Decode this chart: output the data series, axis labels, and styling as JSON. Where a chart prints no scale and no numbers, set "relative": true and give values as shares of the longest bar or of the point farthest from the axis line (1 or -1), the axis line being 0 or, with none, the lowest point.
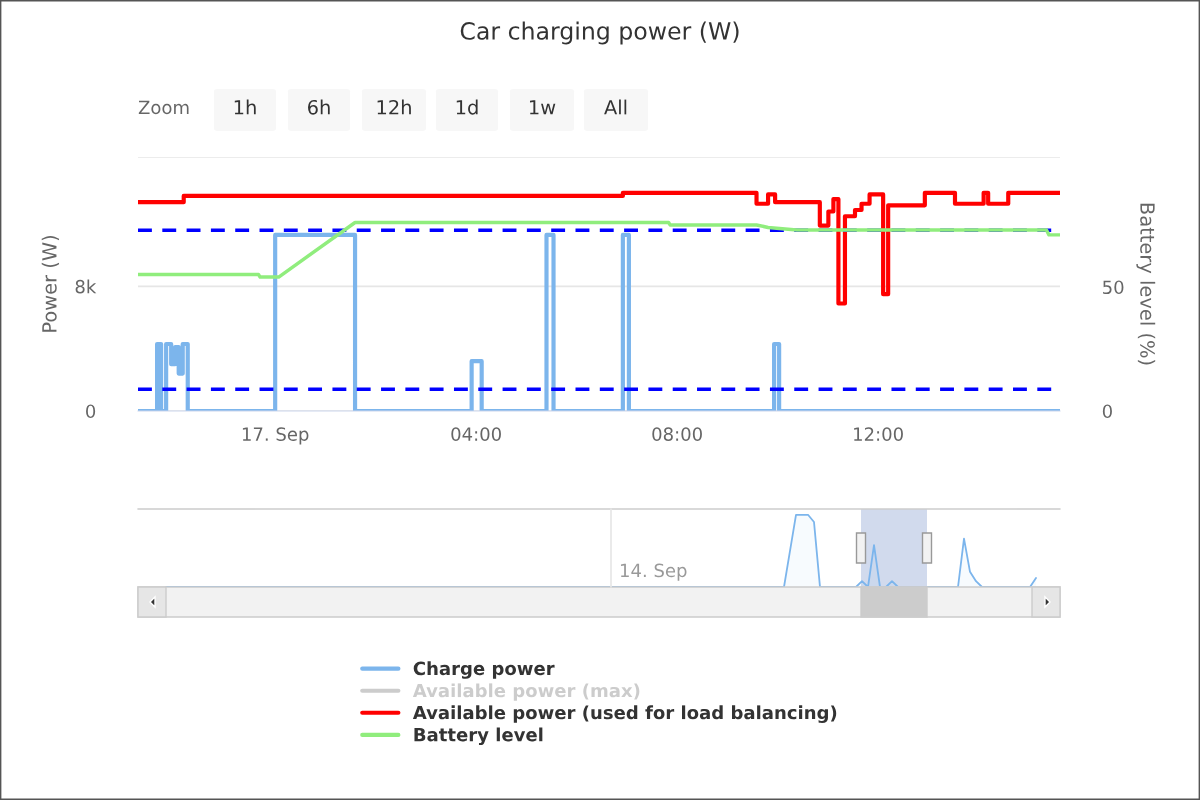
{
  "chart_data": [
    {
      "type": "line",
      "title": "Car charging power (W)",
      "ylabel": "Power (W)",
      "y2label": "Battery level (%)",
      "annotations": [
        "Zoom",
        "1h",
        "6h",
        "12h",
        "1d",
        "1w",
        "All"
      ],
      "xlim": [
        -2.73,
        15.62
      ],
      "xticks": [
        {
          "value": 0,
          "label": "17. Sep"
        },
        {
          "value": 4,
          "label": "04:00"
        },
        {
          "value": 8,
          "label": "08:00"
        },
        {
          "value": 12,
          "label": "12:00"
        }
      ],
      "ylim": [
        0,
        16300
      ],
      "yticks": [
        0,
        {
          "value": 8000,
          "label": "8k"
        },
        {
          "value": 16300,
          "label": null
        }
      ],
      "y2lim": [
        0,
        102.4
      ],
      "y2ticks": [
        0,
        50
      ],
      "grid": "y",
      "legend": "bottom",
      "ref_lines": [
        {
          "axis": "y",
          "value": 11600,
          "color": "#0000ff",
          "line_style": "dashed"
        },
        {
          "axis": "y",
          "value": 1400,
          "color": "#0000ff",
          "line_style": "dashed"
        }
      ],
      "series": [
        {
          "name": "Charge power",
          "type": "step",
          "color": "#7cb5ec",
          "x": [
            -2.73,
            -2.35,
            -2.27,
            -2.17,
            -2.07,
            -1.99,
            -1.92,
            -1.84,
            -1.74,
            0.0,
            1.59,
            3.91,
            4.11,
            5.4,
            5.54,
            6.92,
            7.04,
            9.93,
            10.03,
            15.62
          ],
          "values": [
            0,
            4300,
            0,
            4300,
            3000,
            4100,
            2400,
            4300,
            0,
            11300,
            0,
            3200,
            0,
            11300,
            0,
            11300,
            0,
            4300,
            0,
            0
          ]
        },
        {
          "name": "Available power (max)",
          "type": "step",
          "color": "#cccccc"
        },
        {
          "name": "Available power (used for load balancing)",
          "type": "step",
          "color": "#ff0000",
          "x": [
            -2.73,
            -1.82,
            6.92,
            9.58,
            9.81,
            9.95,
            10.84,
            11.01,
            11.11,
            11.21,
            11.34,
            11.54,
            11.67,
            11.83,
            12.1,
            12.2,
            12.93,
            13.53,
            14.1,
            14.19,
            14.59,
            15.62
          ],
          "values": [
            13400,
            13800,
            14000,
            13300,
            13900,
            13400,
            11900,
            12800,
            13600,
            6900,
            12500,
            12900,
            13300,
            13900,
            7500,
            13200,
            14000,
            13300,
            14000,
            13300,
            14000,
            14000
          ]
        },
        {
          "name": "Battery level",
          "type": "line",
          "axis": "y2",
          "color": "#90ed7d",
          "x": [
            -2.73,
            -0.33,
            -0.3,
            0.07,
            1.59,
            7.83,
            7.86,
            9.58,
            9.81,
            10.38,
            15.35,
            15.4,
            15.62
          ],
          "values": [
            55,
            55,
            54,
            54,
            76,
            76,
            75,
            75,
            74,
            73,
            73,
            71,
            71
          ]
        }
      ]
    },
    {
      "type": "area",
      "relative": true,
      "color": "#7cb5ec",
      "annotations": [
        "14. Sep"
      ],
      "categories": [
        null,
        null,
        null,
        null,
        null,
        null,
        null,
        null,
        null,
        null,
        null,
        null,
        null,
        null,
        null,
        null,
        null,
        null,
        null,
        null,
        null,
        null,
        null,
        null,
        null,
        null,
        null,
        null,
        null,
        null,
        null,
        null,
        null,
        null,
        null,
        null,
        null,
        null,
        null,
        null,
        null,
        null,
        null,
        null,
        null,
        null,
        null,
        null,
        null,
        null,
        null,
        null,
        null,
        null,
        null,
        null,
        null,
        null,
        null,
        null,
        null,
        null,
        null,
        null,
        null,
        null,
        null,
        null,
        null,
        null,
        null,
        null,
        null,
        null,
        null,
        null,
        null,
        null,
        null,
        null,
        null,
        null,
        null,
        null,
        null,
        null,
        null,
        null,
        null,
        null,
        null,
        null,
        null,
        null,
        null,
        null,
        null,
        null,
        null,
        null,
        null,
        null,
        null,
        null,
        null,
        null,
        null,
        null,
        null,
        null,
        null,
        null,
        null,
        null,
        null,
        null,
        null,
        null,
        null,
        null,
        null,
        null,
        null,
        null,
        null,
        null,
        null,
        null,
        null,
        null,
        null,
        null,
        null,
        null,
        null,
        null,
        null,
        null,
        null,
        null,
        null,
        null,
        null,
        null,
        null,
        null
      ],
      "values": [
        0,
        0,
        0,
        0,
        0,
        0,
        0,
        0,
        0,
        0,
        0,
        0,
        0,
        0,
        0,
        0,
        0,
        0,
        0,
        0,
        0,
        0,
        0,
        0,
        0,
        0,
        0,
        0,
        0,
        0,
        0,
        0,
        0,
        0,
        0,
        0,
        0,
        0,
        0,
        0,
        0,
        0,
        0,
        0,
        0,
        0,
        0,
        0,
        0,
        0,
        0,
        0,
        0,
        0,
        0,
        0,
        0,
        0,
        0,
        0,
        0,
        0,
        0,
        0,
        0,
        0,
        0,
        0,
        0,
        0,
        0,
        0,
        0,
        0,
        0,
        0,
        0,
        0,
        0,
        0,
        0,
        0,
        0,
        0,
        0,
        0,
        0,
        0,
        0,
        0,
        0,
        0,
        0,
        0,
        0,
        0,
        0,
        0,
        0,
        0,
        0,
        0,
        0,
        0,
        0.5,
        1,
        1,
        1,
        0.9,
        0,
        0,
        0,
        0,
        0,
        0,
        0,
        0.08,
        0,
        0.58,
        0,
        0,
        0.08,
        0,
        0,
        0,
        0,
        0,
        0,
        0,
        0,
        0,
        0,
        0,
        0.67,
        0.21,
        0.08,
        0,
        0,
        0,
        0,
        0,
        0,
        0,
        0,
        0,
        0.125
      ]
    }
  ]
}
